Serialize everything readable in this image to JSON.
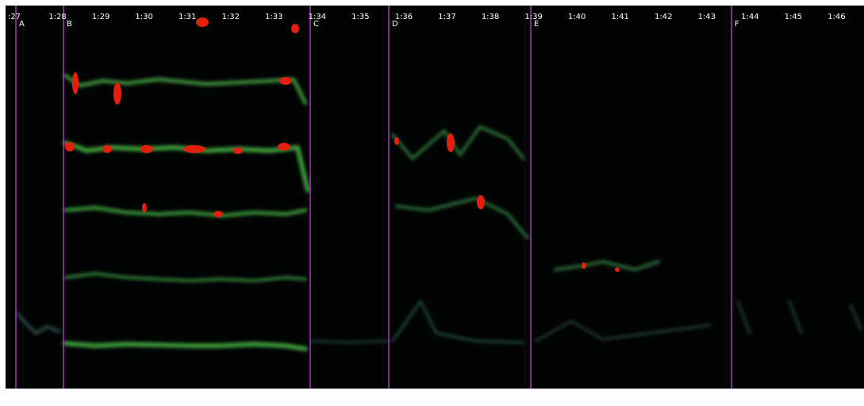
{
  "time_labels": [
    ":27",
    "1:28",
    "1:29",
    "1:30",
    "1:31",
    "1:32",
    "1:33",
    "1:34",
    "1:35",
    "1:36",
    "1:37",
    "1:38",
    "1:39",
    "1:40",
    "1:41",
    "1:42",
    "1:43",
    "1:44",
    "1:45",
    "1:46"
  ],
  "markers": [
    {
      "label": "A"
    },
    {
      "label": "B"
    },
    {
      "label": "C"
    },
    {
      "label": "D"
    },
    {
      "label": "E"
    },
    {
      "label": "F"
    }
  ]
}
